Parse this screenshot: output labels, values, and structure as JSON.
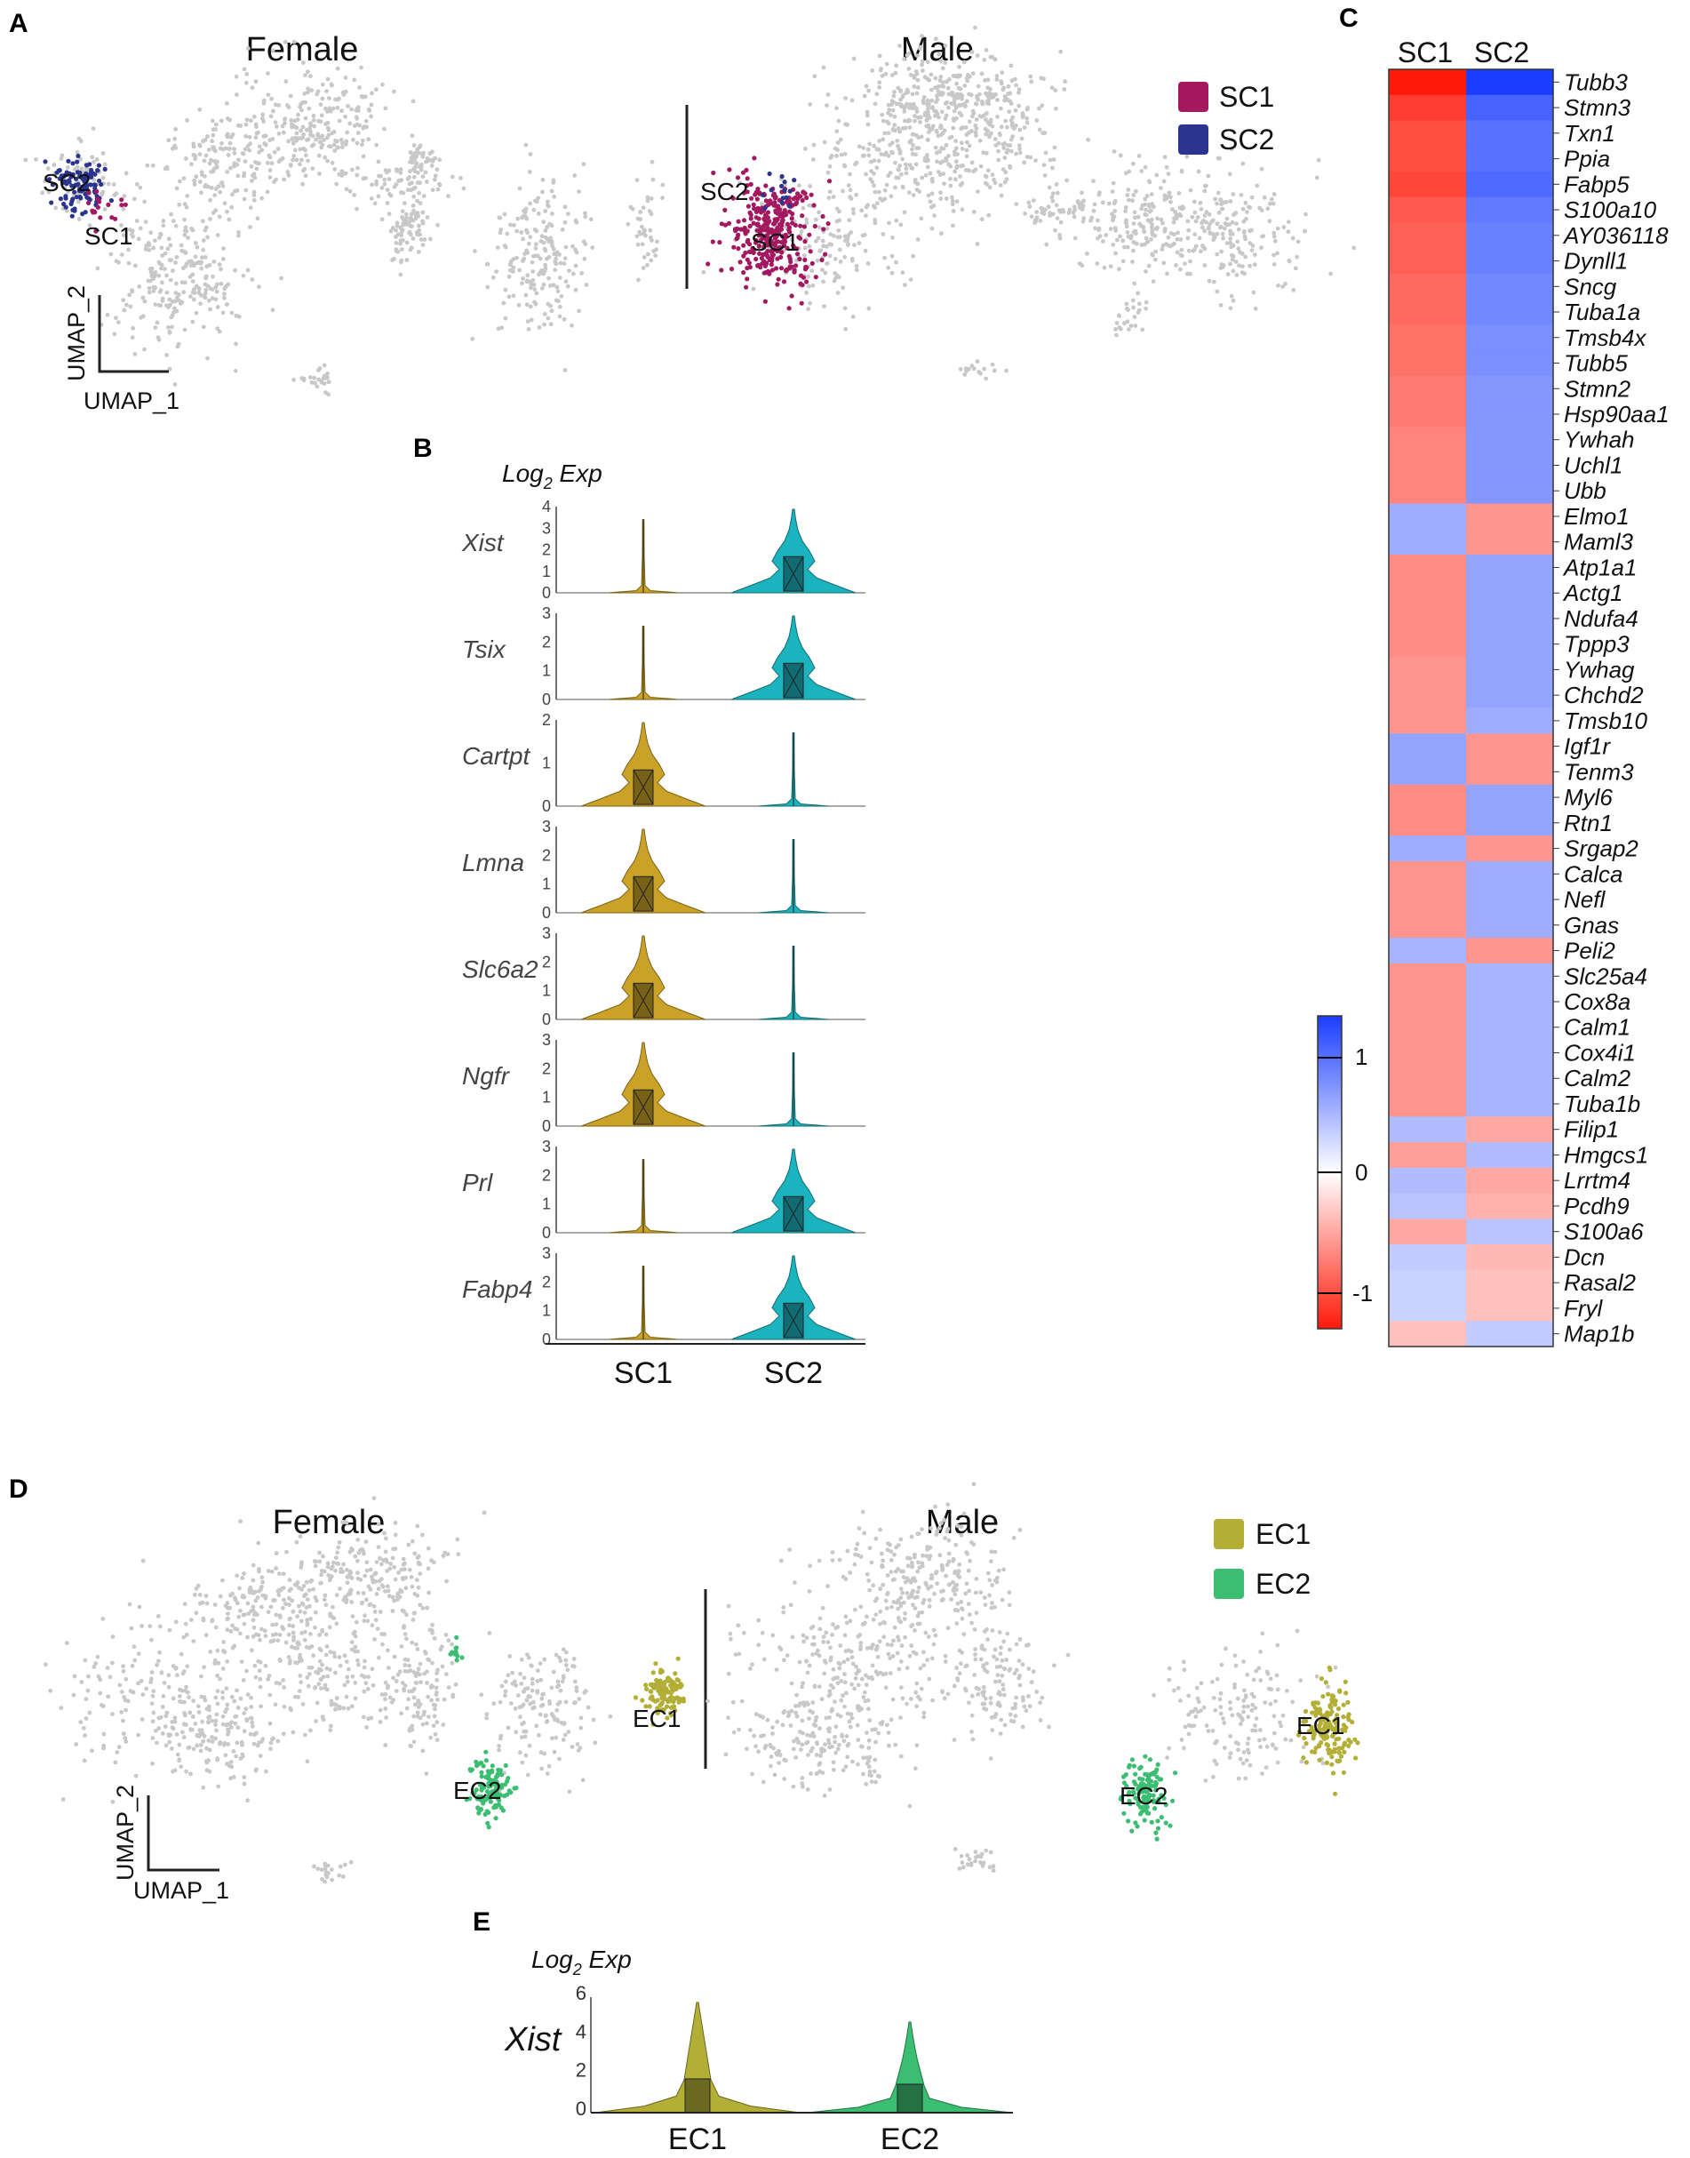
{
  "panels": {
    "A": "A",
    "B": "B",
    "C": "C",
    "D": "D",
    "E": "E"
  },
  "panel_a": {
    "female_title": "Female",
    "male_title": "Male",
    "legend": [
      {
        "label": "SC1",
        "color": "#A3185F"
      },
      {
        "label": "SC2",
        "color": "#2B3590"
      }
    ],
    "cluster_labels": {
      "female_sc2": "SC2",
      "female_sc1": "SC1",
      "male_sc2": "SC2",
      "male_sc1": "SC1"
    },
    "axis_y": "UMAP_2",
    "axis_x": "UMAP_1"
  },
  "panel_d": {
    "female_title": "Female",
    "male_title": "Male",
    "legend": [
      {
        "label": "EC1",
        "color": "#B2AE36"
      },
      {
        "label": "EC2",
        "color": "#3CBE72"
      }
    ],
    "cluster_labels": {
      "female_ec1": "EC1",
      "female_ec2": "EC2",
      "male_ec1": "EC1",
      "male_ec2": "EC2"
    },
    "axis_y": "UMAP_2",
    "axis_x": "UMAP_1"
  },
  "chart_data": [
    {
      "type": "violin",
      "id": "B",
      "title": "Log₂ Exp",
      "title_main": "Log",
      "title_sub": "2",
      "title_tail": " Exp",
      "categories": [
        "SC1",
        "SC2"
      ],
      "colors": {
        "SC1": "#C9A227",
        "SC2": "#1BB3BE"
      },
      "genes": [
        {
          "name": "Xist",
          "ymax": 4,
          "ticks": [
            "0",
            "1",
            "2",
            "3",
            "4"
          ],
          "dominant": "SC2"
        },
        {
          "name": "Tsix",
          "ymax": 3,
          "ticks": [
            "0",
            "1",
            "2",
            "3"
          ],
          "dominant": "SC2"
        },
        {
          "name": "Cartpt",
          "ymax": 2,
          "ticks": [
            "0",
            "1",
            "2"
          ],
          "dominant": "SC1"
        },
        {
          "name": "Lmna",
          "ymax": 3,
          "ticks": [
            "0",
            "1",
            "2",
            "3"
          ],
          "dominant": "SC1"
        },
        {
          "name": "Slc6a2",
          "ymax": 3,
          "ticks": [
            "0",
            "1",
            "2",
            "3"
          ],
          "dominant": "SC1"
        },
        {
          "name": "Ngfr",
          "ymax": 3,
          "ticks": [
            "0",
            "1",
            "2",
            "3"
          ],
          "dominant": "SC1"
        },
        {
          "name": "Prl",
          "ymax": 3,
          "ticks": [
            "0",
            "1",
            "2",
            "3"
          ],
          "dominant": "SC2"
        },
        {
          "name": "Fabp4",
          "ymax": 3,
          "ticks": [
            "0",
            "1",
            "2",
            "3"
          ],
          "dominant": "SC2"
        }
      ]
    },
    {
      "type": "heatmap",
      "id": "C",
      "columns": [
        "SC1",
        "SC2"
      ],
      "color_scale": {
        "low": "#FF1A0A",
        "mid": "#FFFFFF",
        "high": "#1A3DFF",
        "min": -1.3,
        "max": 1.3,
        "ticks": [
          "1",
          "0",
          "-1"
        ]
      },
      "rows": [
        {
          "gene": "Tubb3",
          "values": [
            -1.3,
            1.3
          ]
        },
        {
          "gene": "Stmn3",
          "values": [
            -1.1,
            1.05
          ]
        },
        {
          "gene": "Txn1",
          "values": [
            -1.0,
            0.95
          ]
        },
        {
          "gene": "Ppia",
          "values": [
            -1.0,
            0.95
          ]
        },
        {
          "gene": "Fabp5",
          "values": [
            -1.05,
            1.0
          ]
        },
        {
          "gene": "S100a10",
          "values": [
            -0.95,
            0.9
          ]
        },
        {
          "gene": "AY036118",
          "values": [
            -0.9,
            0.85
          ]
        },
        {
          "gene": "Dynll1",
          "values": [
            -0.9,
            0.85
          ]
        },
        {
          "gene": "Sncg",
          "values": [
            -0.85,
            0.8
          ]
        },
        {
          "gene": "Tuba1a",
          "values": [
            -0.85,
            0.8
          ]
        },
        {
          "gene": "Tmsb4x",
          "values": [
            -0.8,
            0.75
          ]
        },
        {
          "gene": "Tubb5",
          "values": [
            -0.8,
            0.75
          ]
        },
        {
          "gene": "Stmn2",
          "values": [
            -0.75,
            0.7
          ]
        },
        {
          "gene": "Hsp90aa1",
          "values": [
            -0.75,
            0.7
          ]
        },
        {
          "gene": "Ywhah",
          "values": [
            -0.7,
            0.7
          ]
        },
        {
          "gene": "Uchl1",
          "values": [
            -0.7,
            0.7
          ]
        },
        {
          "gene": "Ubb",
          "values": [
            -0.7,
            0.7
          ]
        },
        {
          "gene": "Elmo1",
          "values": [
            0.55,
            -0.6
          ]
        },
        {
          "gene": "Maml3",
          "values": [
            0.55,
            -0.6
          ]
        },
        {
          "gene": "Atp1a1",
          "values": [
            -0.65,
            0.6
          ]
        },
        {
          "gene": "Actg1",
          "values": [
            -0.65,
            0.6
          ]
        },
        {
          "gene": "Ndufa4",
          "values": [
            -0.65,
            0.6
          ]
        },
        {
          "gene": "Tppp3",
          "values": [
            -0.65,
            0.6
          ]
        },
        {
          "gene": "Ywhag",
          "values": [
            -0.6,
            0.6
          ]
        },
        {
          "gene": "Chchd2",
          "values": [
            -0.6,
            0.6
          ]
        },
        {
          "gene": "Tmsb10",
          "values": [
            -0.6,
            0.55
          ]
        },
        {
          "gene": "Igf1r",
          "values": [
            0.6,
            -0.6
          ]
        },
        {
          "gene": "Tenm3",
          "values": [
            0.6,
            -0.6
          ]
        },
        {
          "gene": "Myl6",
          "values": [
            -0.65,
            0.6
          ]
        },
        {
          "gene": "Rtn1",
          "values": [
            -0.65,
            0.6
          ]
        },
        {
          "gene": "Srgap2",
          "values": [
            0.55,
            -0.6
          ]
        },
        {
          "gene": "Calca",
          "values": [
            -0.6,
            0.55
          ]
        },
        {
          "gene": "Nefl",
          "values": [
            -0.6,
            0.55
          ]
        },
        {
          "gene": "Gnas",
          "values": [
            -0.6,
            0.55
          ]
        },
        {
          "gene": "Peli2",
          "values": [
            0.5,
            -0.6
          ]
        },
        {
          "gene": "Slc25a4",
          "values": [
            -0.6,
            0.5
          ]
        },
        {
          "gene": "Cox8a",
          "values": [
            -0.6,
            0.5
          ]
        },
        {
          "gene": "Calm1",
          "values": [
            -0.6,
            0.5
          ]
        },
        {
          "gene": "Cox4i1",
          "values": [
            -0.6,
            0.5
          ]
        },
        {
          "gene": "Calm2",
          "values": [
            -0.6,
            0.5
          ]
        },
        {
          "gene": "Tuba1b",
          "values": [
            -0.6,
            0.5
          ]
        },
        {
          "gene": "Filip1",
          "values": [
            0.45,
            -0.5
          ]
        },
        {
          "gene": "Hmgcs1",
          "values": [
            -0.55,
            0.45
          ]
        },
        {
          "gene": "Lrrtm4",
          "values": [
            0.45,
            -0.5
          ]
        },
        {
          "gene": "Pcdh9",
          "values": [
            0.4,
            -0.45
          ]
        },
        {
          "gene": "S100a6",
          "values": [
            -0.5,
            0.4
          ]
        },
        {
          "gene": "Dcn",
          "values": [
            0.35,
            -0.4
          ]
        },
        {
          "gene": "Rasal2",
          "values": [
            0.3,
            -0.35
          ]
        },
        {
          "gene": "Fryl",
          "values": [
            0.3,
            -0.35
          ]
        },
        {
          "gene": "Map1b",
          "values": [
            -0.35,
            0.35
          ]
        }
      ]
    },
    {
      "type": "violin",
      "id": "E",
      "title_main": "Log",
      "title_sub": "2",
      "title_tail": " Exp",
      "gene": "Xist",
      "categories": [
        "EC1",
        "EC2"
      ],
      "colors": {
        "EC1": "#B2AE36",
        "EC2": "#3CBE72"
      },
      "ymax": 6,
      "ticks": [
        "0",
        "2",
        "4",
        "6"
      ]
    }
  ]
}
